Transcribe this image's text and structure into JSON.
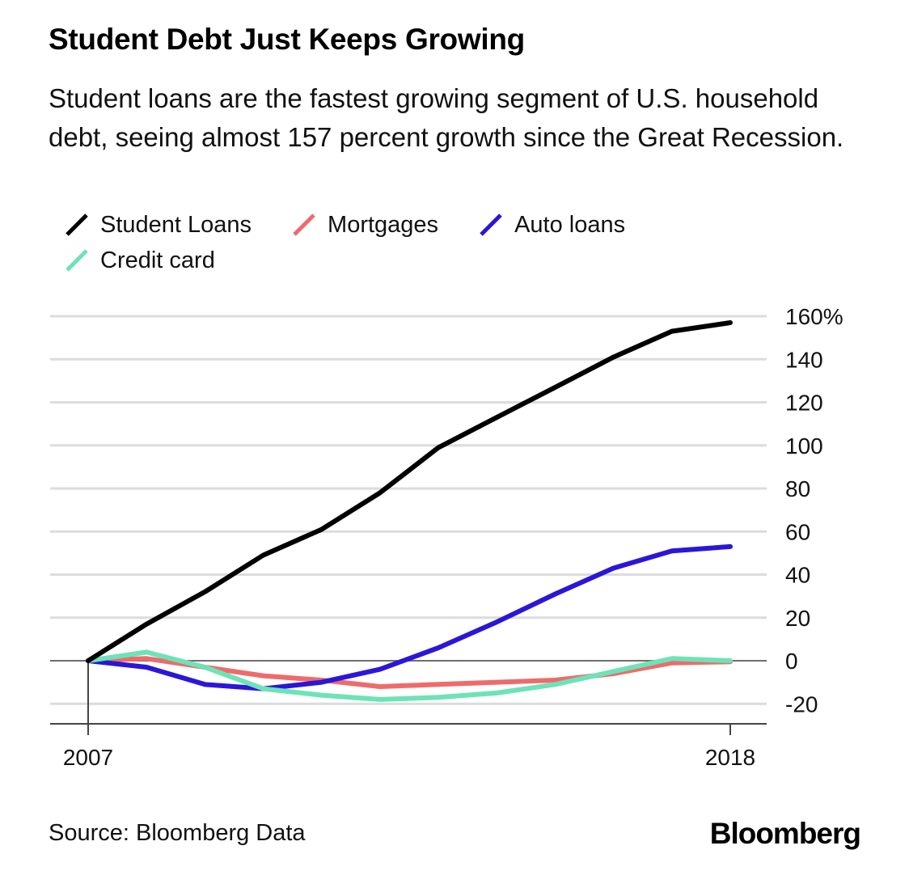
{
  "chart_data": {
    "type": "line",
    "title": "Student Debt Just Keeps Growing",
    "subtitle": "Student loans are the fastest growing segment of U.S. household debt, seeing almost 157 percent growth since the Great Recession.",
    "x": [
      2007,
      2008,
      2009,
      2010,
      2011,
      2012,
      2013,
      2014,
      2015,
      2016,
      2017,
      2018
    ],
    "x_tick_labels": [
      "2007",
      "2018"
    ],
    "y_ticks": [
      {
        "value": 160,
        "label": "160%"
      },
      {
        "value": 140,
        "label": "140"
      },
      {
        "value": 120,
        "label": "120"
      },
      {
        "value": 100,
        "label": "100"
      },
      {
        "value": 80,
        "label": "80"
      },
      {
        "value": 60,
        "label": "60"
      },
      {
        "value": 40,
        "label": "40"
      },
      {
        "value": 20,
        "label": "20"
      },
      {
        "value": 0,
        "label": "0"
      },
      {
        "value": -20,
        "label": "-20"
      }
    ],
    "ylim": [
      -30,
      165
    ],
    "grid": true,
    "legend_position": "top-left",
    "series": [
      {
        "name": "Mortgages",
        "color": "#ee6b6b",
        "values": [
          0,
          1,
          -3,
          -7,
          -9,
          -12,
          -11,
          -10,
          -9,
          -6,
          -1,
          -0.5
        ]
      },
      {
        "name": "Auto loans",
        "color": "#2b16d8",
        "values": [
          0,
          -3,
          -11,
          -13,
          -10,
          -4,
          6,
          18,
          31,
          43,
          51,
          53
        ]
      },
      {
        "name": "Credit card",
        "color": "#6de3b7",
        "values": [
          0,
          4,
          -3,
          -13,
          -16,
          -18,
          -17,
          -15,
          -11,
          -5,
          1,
          0
        ]
      },
      {
        "name": "Student Loans",
        "color": "#000000",
        "values": [
          0,
          17,
          32,
          49,
          61,
          78,
          99,
          113,
          127,
          141,
          153,
          157
        ]
      }
    ],
    "legend": [
      {
        "name": "Student Loans",
        "color": "#000000"
      },
      {
        "name": "Mortgages",
        "color": "#ee6b6b"
      },
      {
        "name": "Auto loans",
        "color": "#2b16d8"
      },
      {
        "name": "Credit card",
        "color": "#6de3b7"
      }
    ]
  },
  "footer": {
    "source": "Source: Bloomberg Data",
    "brand": "Bloomberg"
  }
}
